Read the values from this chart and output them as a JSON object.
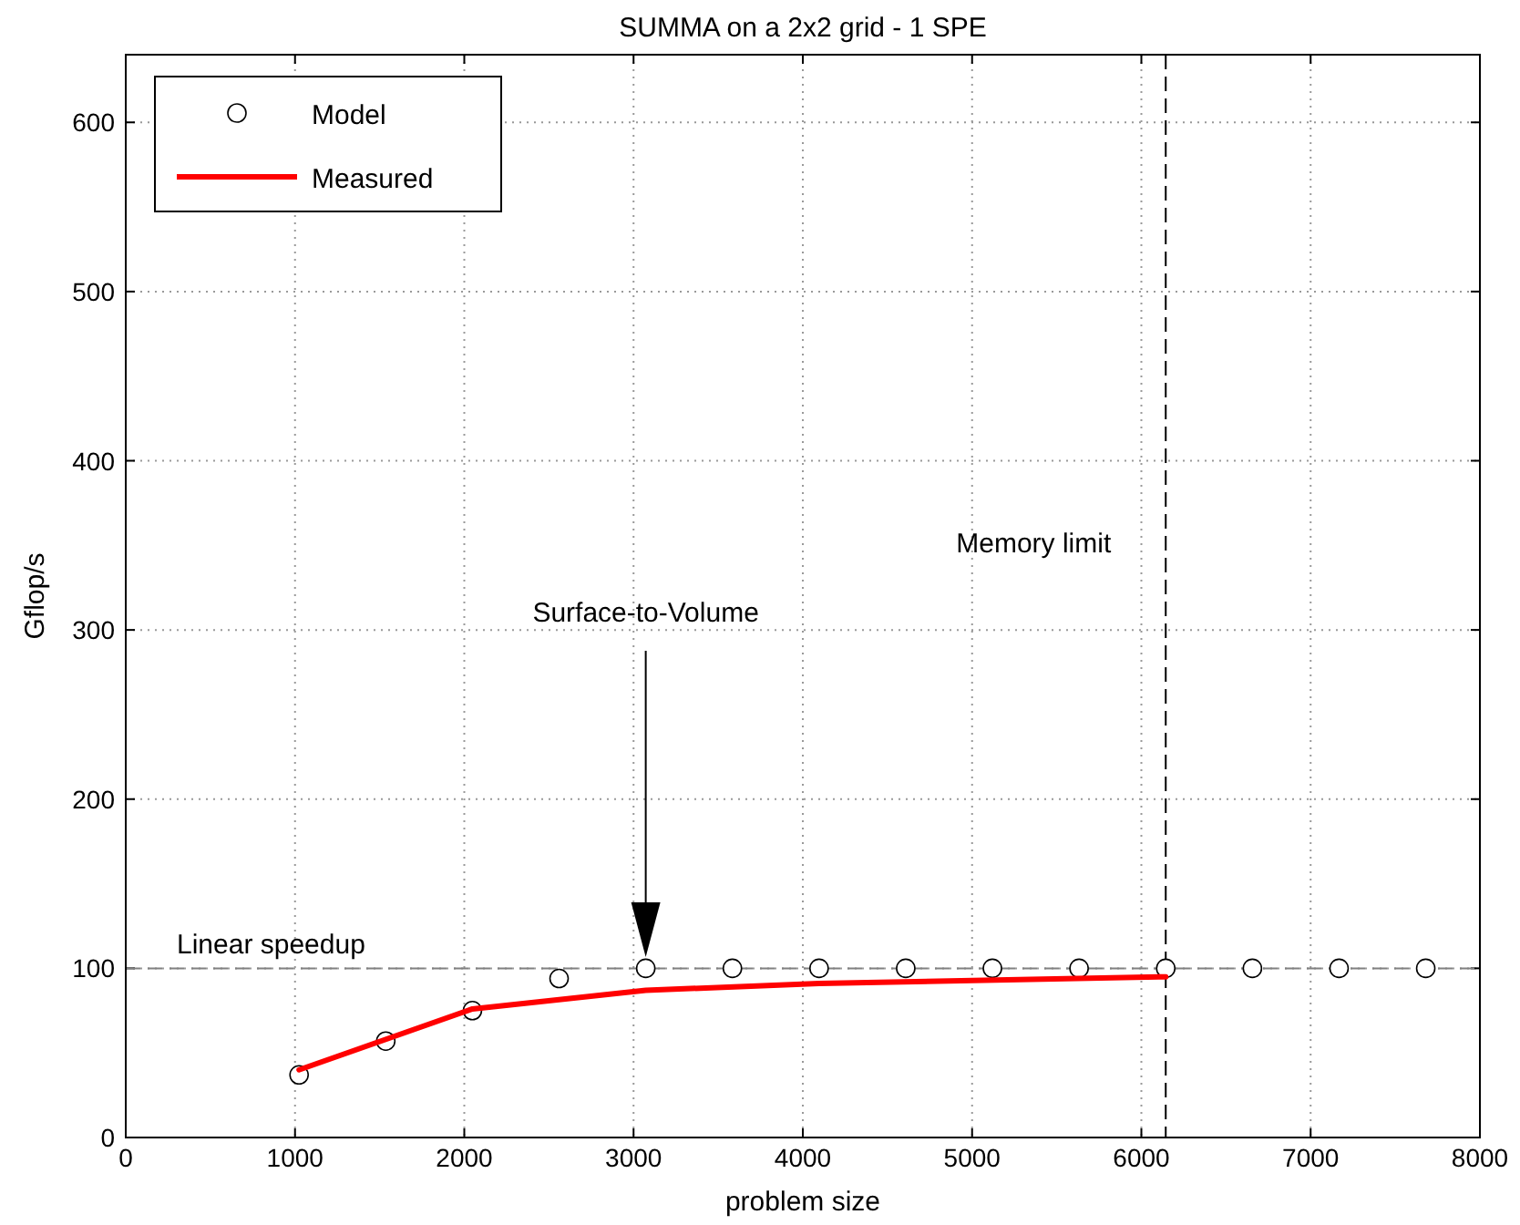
{
  "chart_data": {
    "type": "line",
    "title": "SUMMA on a 2x2 grid - 1 SPE",
    "xlabel": "problem size",
    "ylabel": "Gflop/s",
    "xlim": [
      0,
      8000
    ],
    "xticks": [
      0,
      1000,
      2000,
      3000,
      4000,
      5000,
      6000,
      7000,
      8000
    ],
    "ylim": [
      0,
      640
    ],
    "yticks": [
      0,
      100,
      200,
      300,
      400,
      500,
      600
    ],
    "grid": true,
    "legend": "top left",
    "series": [
      {
        "name": "Model",
        "type": "scatter",
        "color": "#000000",
        "marker": "circle",
        "x": [
          1024,
          1536,
          2048,
          2560,
          3072,
          3584,
          4096,
          4608,
          5120,
          5632,
          6144,
          6656,
          7168,
          7680
        ],
        "values": [
          37,
          57,
          75,
          94,
          100,
          100,
          100,
          100,
          100,
          100,
          100,
          100,
          100,
          100
        ]
      },
      {
        "name": "Measured",
        "color": "#ff0000",
        "marker": "none",
        "line_style": "solid",
        "x": [
          1024,
          2048,
          3072,
          4096,
          6144
        ],
        "values": [
          40,
          76,
          87,
          91,
          95
        ]
      }
    ],
    "ref_lines": [
      {
        "axis": "y",
        "value": 100,
        "label": "Linear speedup",
        "color": "#808080",
        "line_style": "dashed"
      },
      {
        "axis": "x",
        "value": 6144,
        "label": "Memory limit",
        "color": "#000000",
        "line_style": "dashed"
      }
    ],
    "annotations": [
      "Surface-to-Volume"
    ]
  }
}
